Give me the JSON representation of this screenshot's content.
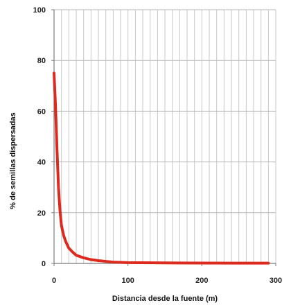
{
  "chart_data": {
    "type": "line",
    "title": "",
    "xlabel": "Distancia desde la fuente (m)",
    "ylabel": "% de semillas dispersadas",
    "xlim": [
      0,
      300
    ],
    "ylim": [
      0,
      100
    ],
    "x_ticks": [
      0,
      100,
      200,
      300
    ],
    "y_ticks": [
      0,
      20,
      40,
      60,
      80,
      100
    ],
    "grid": true,
    "legend": "none",
    "series": [
      {
        "color": "#dd2a1e",
        "x": [
          0,
          2,
          4,
          6,
          8,
          10,
          13,
          16,
          20,
          25,
          30,
          40,
          50,
          60,
          70,
          80,
          100,
          150,
          200,
          250,
          290
        ],
        "y": [
          75,
          62,
          45,
          30,
          21,
          15,
          11,
          8.5,
          6,
          4.5,
          3.2,
          2.2,
          1.5,
          1.1,
          0.8,
          0.5,
          0.3,
          0.2,
          0.15,
          0.1,
          0.1
        ]
      }
    ]
  }
}
